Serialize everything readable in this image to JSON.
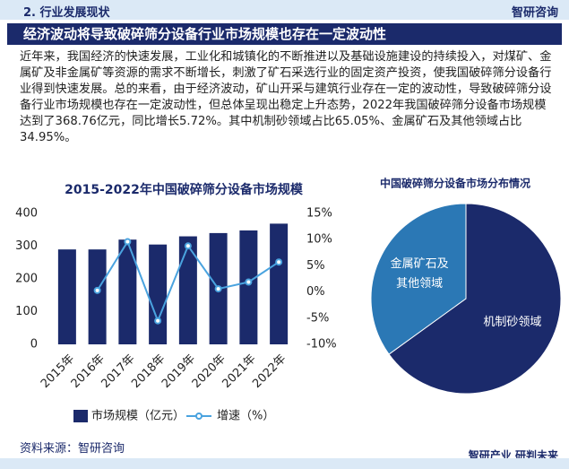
{
  "header": {
    "section": "2. 行业发展现状",
    "brand": "智研咨询"
  },
  "banner": "经济波动将导致破碎筛分设备行业市场规模也存在一定波动性",
  "paragraph": "近年来，我国经济的快速发展，工业化和城镇化的不断推进以及基础设施建设的持续投入，对煤矿、金属矿及非金属矿等资源的需求不断增长，刺激了矿石采选行业的固定资产投资，使我国破碎筛分设备行业得到快速发展。总的来看，由于经济波动，矿山开采与建筑行业存在一定的波动性，导致破碎筛分设备行业市场规模也存在一定波动性，但总体呈现出稳定上升态势，2022年我国破碎筛分设备市场规模达到了368.76亿元，同比增长5.72%。其中机制砂领域占比65.05%、金属矿石及其他领域占比34.95%。",
  "chart_data": [
    {
      "type": "bar",
      "title": "2015-2022年中国破碎筛分设备市场规模",
      "categories": [
        "2015年",
        "2016年",
        "2017年",
        "2018年",
        "2019年",
        "2020年",
        "2021年",
        "2022年"
      ],
      "series": [
        {
          "name": "市场规模（亿元）",
          "type": "bar",
          "color": "#1b2a6b",
          "values": [
            290,
            290,
            320,
            305,
            330,
            340,
            348,
            368.76
          ]
        },
        {
          "name": "增速（%）",
          "type": "line",
          "axis": "y2",
          "color": "#4aa3df",
          "values": [
            null,
            0.3,
            9.6,
            -5.5,
            8.8,
            0.6,
            1.9,
            5.72
          ]
        }
      ],
      "ylim": [
        0,
        400
      ],
      "yticks": [
        0,
        100,
        200,
        300,
        400
      ],
      "y2lim": [
        -10,
        15
      ],
      "y2ticks": [
        {
          "value": -10,
          "label": "-10%"
        },
        {
          "value": -5,
          "label": "-5%"
        },
        {
          "value": 0,
          "label": "0%"
        },
        {
          "value": 5,
          "label": "5%"
        },
        {
          "value": 10,
          "label": "10%"
        },
        {
          "value": 15,
          "label": "15%"
        }
      ],
      "grid": false
    },
    {
      "type": "pie",
      "title": "中国破碎筛分设备市场分布情况",
      "categories": [
        "机制砂领域",
        "金属矿石及其他领域"
      ],
      "values": [
        65.05,
        34.95
      ],
      "colors": [
        "#1b2a6b",
        "#2b78b5"
      ]
    }
  ],
  "source": "资料来源：智研咨询",
  "footer": {
    "brand": "智研产业",
    "slogan": "研判未来"
  }
}
